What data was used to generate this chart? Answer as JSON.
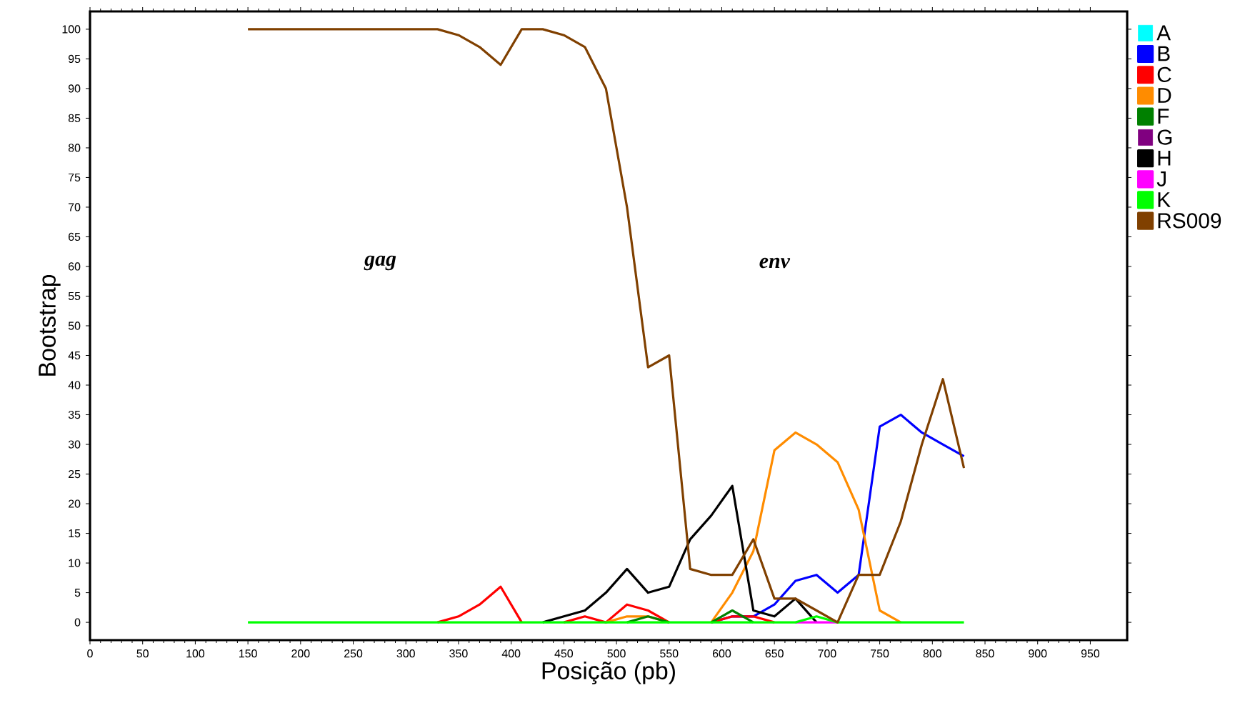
{
  "chart_data": {
    "type": "line",
    "xlabel": "Posição (pb)",
    "ylabel": "Bootstrap",
    "x": [
      150,
      170,
      190,
      210,
      230,
      250,
      270,
      290,
      310,
      330,
      350,
      370,
      390,
      410,
      430,
      450,
      470,
      490,
      510,
      530,
      550,
      570,
      590,
      610,
      630,
      650,
      670,
      690,
      710,
      730,
      750,
      770,
      790,
      810,
      830
    ],
    "series": [
      {
        "name": "A",
        "color": "#00ffff",
        "values": [
          null,
          null,
          null,
          null,
          null,
          null,
          null,
          null,
          null,
          null,
          null,
          null,
          null,
          null,
          null,
          null,
          null,
          null,
          null,
          null,
          null,
          null,
          null,
          null,
          null,
          null,
          null,
          null,
          null,
          null,
          null,
          null,
          null,
          null,
          null
        ]
      },
      {
        "name": "B",
        "color": "#0000ff",
        "values": [
          null,
          null,
          null,
          null,
          null,
          null,
          null,
          null,
          null,
          null,
          null,
          null,
          null,
          null,
          null,
          null,
          null,
          null,
          null,
          null,
          null,
          null,
          0,
          1,
          1,
          3,
          7,
          8,
          5,
          8,
          33,
          35,
          32,
          30,
          28
        ]
      },
      {
        "name": "C",
        "color": "#ff0000",
        "values": [
          null,
          null,
          null,
          null,
          null,
          null,
          null,
          null,
          null,
          0,
          1,
          3,
          6,
          0,
          null,
          0,
          1,
          0,
          3,
          2,
          0,
          null,
          0,
          1,
          1,
          0,
          null,
          null,
          null,
          null,
          null,
          null,
          null,
          null,
          null
        ]
      },
      {
        "name": "D",
        "color": "#ff8c00",
        "values": [
          null,
          null,
          null,
          null,
          null,
          null,
          null,
          null,
          null,
          null,
          null,
          null,
          null,
          null,
          null,
          null,
          null,
          0,
          1,
          1,
          0,
          null,
          0,
          5,
          12,
          29,
          32,
          30,
          27,
          19,
          2,
          0,
          null,
          null,
          null
        ]
      },
      {
        "name": "F",
        "color": "#008000",
        "values": [
          null,
          null,
          null,
          null,
          null,
          null,
          null,
          null,
          null,
          null,
          null,
          null,
          null,
          null,
          null,
          null,
          null,
          null,
          0,
          1,
          0,
          null,
          0,
          2,
          0,
          null,
          null,
          null,
          null,
          null,
          null,
          null,
          null,
          null,
          null
        ]
      },
      {
        "name": "G",
        "color": "#800080",
        "values": [
          null,
          null,
          null,
          null,
          null,
          null,
          null,
          null,
          null,
          null,
          null,
          null,
          null,
          null,
          null,
          null,
          null,
          null,
          null,
          null,
          null,
          null,
          null,
          null,
          null,
          null,
          null,
          null,
          null,
          null,
          null,
          null,
          null,
          null,
          null
        ]
      },
      {
        "name": "H",
        "color": "#000000",
        "values": [
          null,
          null,
          null,
          null,
          null,
          null,
          null,
          null,
          null,
          null,
          null,
          null,
          null,
          null,
          0,
          1,
          2,
          5,
          9,
          5,
          6,
          14,
          18,
          23,
          2,
          1,
          4,
          0,
          null,
          null,
          null,
          null,
          null,
          null,
          null
        ]
      },
      {
        "name": "J",
        "color": "#ff00ff",
        "values": [
          null,
          null,
          null,
          null,
          null,
          null,
          null,
          null,
          null,
          null,
          null,
          null,
          null,
          null,
          null,
          null,
          null,
          null,
          null,
          null,
          null,
          null,
          null,
          null,
          null,
          null,
          0,
          0,
          0,
          null,
          null,
          null,
          null,
          null,
          null
        ]
      },
      {
        "name": "K",
        "color": "#00ff00",
        "values": [
          0,
          0,
          0,
          0,
          0,
          0,
          0,
          0,
          0,
          0,
          0,
          0,
          0,
          0,
          0,
          0,
          0,
          0,
          0,
          0,
          0,
          0,
          0,
          0,
          0,
          0,
          0,
          1,
          0,
          0,
          0,
          0,
          0,
          0,
          0
        ]
      },
      {
        "name": "RS009",
        "color": "#804000",
        "values": [
          100,
          100,
          100,
          100,
          100,
          100,
          100,
          100,
          100,
          100,
          99,
          97,
          94,
          100,
          100,
          99,
          97,
          90,
          70,
          43,
          45,
          9,
          8,
          8,
          14,
          4,
          4,
          2,
          0,
          8,
          8,
          17,
          30,
          41,
          26
        ]
      }
    ],
    "xlim": [
      0,
      985
    ],
    "ylim": [
      -3,
      103
    ],
    "xticks": [
      0,
      50,
      100,
      150,
      200,
      250,
      300,
      350,
      400,
      450,
      500,
      550,
      600,
      650,
      700,
      750,
      800,
      850,
      900,
      950
    ],
    "yticks": [
      0,
      5,
      10,
      15,
      20,
      25,
      30,
      35,
      40,
      45,
      50,
      55,
      60,
      65,
      70,
      75,
      80,
      85,
      90,
      95,
      100
    ],
    "grid": false,
    "legend": "right",
    "marker": "none",
    "line_style": "solid",
    "annotations": [
      "gag",
      "env"
    ]
  }
}
